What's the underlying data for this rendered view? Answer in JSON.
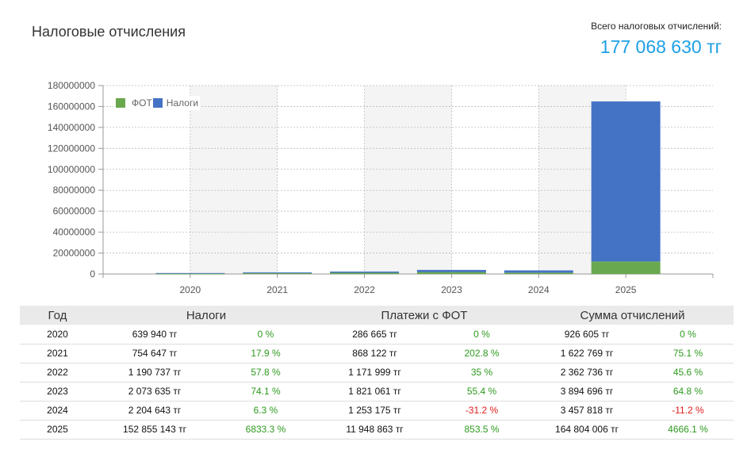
{
  "header": {
    "title": "Налоговые отчисления",
    "total_label": "Всего налоговых отчислений:",
    "total_value": "177 068 630 тг"
  },
  "colors": {
    "fot": "#6aa84f",
    "taxes": "#4472c4",
    "accent": "#1ea0e6",
    "positive": "#2e9a1f",
    "negative": "#e11a1a"
  },
  "chart_data": {
    "type": "bar",
    "stacked": true,
    "categories": [
      "2020",
      "2021",
      "2022",
      "2023",
      "2024",
      "2025"
    ],
    "series": [
      {
        "name": "ФОТ",
        "values": [
          286665,
          868122,
          1171999,
          1821061,
          1253175,
          11948863
        ]
      },
      {
        "name": "Налоги",
        "values": [
          639940,
          754647,
          1190737,
          2073635,
          2204643,
          152855143
        ]
      }
    ],
    "ylim": [
      0,
      180000000
    ],
    "yticks": [
      0,
      20000000,
      40000000,
      60000000,
      80000000,
      100000000,
      120000000,
      140000000,
      160000000,
      180000000
    ],
    "grid": true,
    "legend_position": "top-left"
  },
  "table": {
    "headers": {
      "year": "Год",
      "taxes": "Налоги",
      "fot": "Платежи с ФОТ",
      "sum": "Сумма отчислений"
    },
    "rows": [
      {
        "year": "2020",
        "taxes": "639 940 тг",
        "taxes_pct": "0 %",
        "fot": "286 665 тг",
        "fot_pct": "0 %",
        "sum": "926 605 тг",
        "sum_pct": "0 %"
      },
      {
        "year": "2021",
        "taxes": "754 647 тг",
        "taxes_pct": "17.9 %",
        "fot": "868 122 тг",
        "fot_pct": "202.8 %",
        "sum": "1 622 769 тг",
        "sum_pct": "75.1 %"
      },
      {
        "year": "2022",
        "taxes": "1 190 737 тг",
        "taxes_pct": "57.8 %",
        "fot": "1 171 999 тг",
        "fot_pct": "35 %",
        "sum": "2 362 736 тг",
        "sum_pct": "45.6 %"
      },
      {
        "year": "2023",
        "taxes": "2 073 635 тг",
        "taxes_pct": "74.1 %",
        "fot": "1 821 061 тг",
        "fot_pct": "55.4 %",
        "sum": "3 894 696 тг",
        "sum_pct": "64.8 %"
      },
      {
        "year": "2024",
        "taxes": "2 204 643 тг",
        "taxes_pct": "6.3 %",
        "fot": "1 253 175 тг",
        "fot_pct": "-31.2 %",
        "sum": "3 457 818 тг",
        "sum_pct": "-11.2 %"
      },
      {
        "year": "2025",
        "taxes": "152 855 143 тг",
        "taxes_pct": "6833.3 %",
        "fot": "11 948 863 тг",
        "fot_pct": "853.5 %",
        "sum": "164 804 006 тг",
        "sum_pct": "4666.1 %"
      }
    ]
  }
}
